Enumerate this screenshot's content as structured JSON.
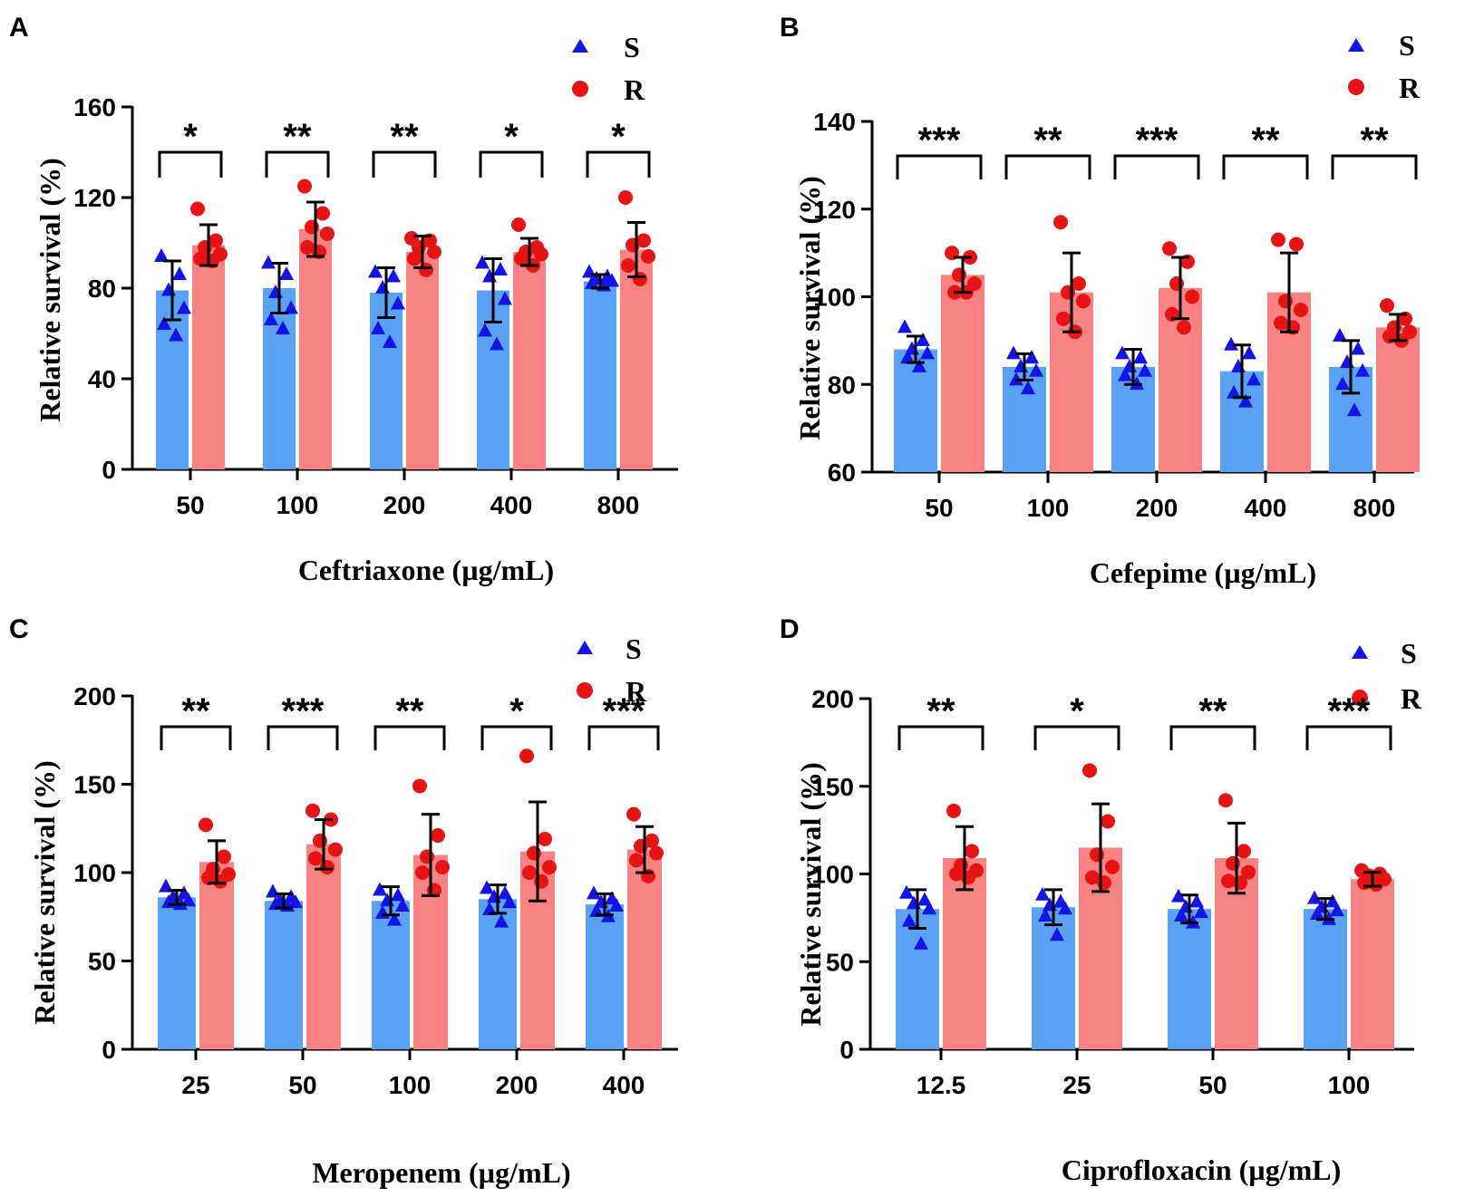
{
  "colors": {
    "s_bar": "#5aa2f5",
    "r_bar": "#f98383",
    "s_marker": "#1414e6",
    "r_marker": "#e61414",
    "axis": "#000000"
  },
  "legend": {
    "s_label": "S",
    "r_label": "R"
  },
  "chart_data": [
    {
      "panel": "A",
      "type": "bar",
      "xlabel": "Ceftriaxone (µg/mL)",
      "ylabel": "Relative survival (%)",
      "ylim": [
        0,
        160
      ],
      "yticks": [
        0,
        40,
        80,
        120,
        160
      ],
      "categories": [
        "50",
        "100",
        "200",
        "400",
        "800"
      ],
      "series": [
        {
          "name": "S",
          "values": [
            79,
            80,
            78,
            79,
            83
          ],
          "sd": [
            13,
            11,
            11,
            14,
            3
          ],
          "points": [
            [
              94,
              86,
              79,
              71,
              64,
              59
            ],
            [
              91,
              86,
              78,
              71,
              66,
              62
            ],
            [
              87,
              85,
              80,
              73,
              62,
              56
            ],
            [
              91,
              88,
              85,
              75,
              61,
              55
            ],
            [
              87,
              85,
              84,
              83,
              82,
              81
            ]
          ]
        },
        {
          "name": "R",
          "values": [
            99,
            106,
            96,
            96,
            97
          ],
          "sd": [
            9,
            12,
            7,
            6,
            12
          ],
          "points": [
            [
              115,
              101,
              98,
              95,
              93,
              92
            ],
            [
              125,
              113,
              107,
              104,
              98,
              96
            ],
            [
              102,
              101,
              98,
              96,
              93,
              88
            ],
            [
              108,
              98,
              96,
              95,
              93,
              90
            ],
            [
              120,
              101,
              99,
              94,
              90,
              84
            ]
          ]
        }
      ],
      "significance": [
        "*",
        "**",
        "**",
        "*",
        "*"
      ]
    },
    {
      "panel": "B",
      "type": "bar",
      "xlabel": "Cefepime (µg/mL)",
      "ylabel": "Relative survival (%)",
      "ylim": [
        60,
        140
      ],
      "yticks": [
        60,
        80,
        100,
        120,
        140
      ],
      "categories": [
        "50",
        "100",
        "200",
        "400",
        "800"
      ],
      "series": [
        {
          "name": "S",
          "values": [
            88,
            84,
            84,
            83,
            84
          ],
          "sd": [
            3,
            3,
            4,
            6,
            6
          ],
          "points": [
            [
              93,
              90,
              88,
              87,
              86,
              84
            ],
            [
              87,
              86,
              84,
              83,
              81,
              79
            ],
            [
              87,
              86,
              84,
              83,
              82,
              80
            ],
            [
              89,
              87,
              84,
              81,
              78,
              76
            ],
            [
              91,
              88,
              85,
              83,
              80,
              74
            ]
          ]
        },
        {
          "name": "R",
          "values": [
            105,
            101,
            102,
            101,
            93
          ],
          "sd": [
            4,
            9,
            7,
            9,
            3
          ],
          "points": [
            [
              110,
              109,
              105,
              103,
              101,
              101
            ],
            [
              117,
              103,
              101,
              99,
              95,
              92
            ],
            [
              111,
              108,
              103,
              100,
              96,
              93
            ],
            [
              113,
              112,
              99,
              97,
              94,
              93
            ],
            [
              98,
              95,
              93,
              92,
              91,
              90
            ]
          ]
        }
      ],
      "significance": [
        "***",
        "**",
        "***",
        "**",
        "**"
      ]
    },
    {
      "panel": "C",
      "type": "bar",
      "xlabel": "Meropenem (µg/mL)",
      "ylabel": "Relative survival (%)",
      "ylim": [
        0,
        200
      ],
      "yticks": [
        0,
        50,
        100,
        150,
        200
      ],
      "categories": [
        "25",
        "50",
        "100",
        "200",
        "400"
      ],
      "series": [
        {
          "name": "S",
          "values": [
            86,
            84,
            84,
            85,
            82
          ],
          "sd": [
            4,
            4,
            8,
            8,
            6
          ],
          "points": [
            [
              92,
              88,
              86,
              84,
              83,
              82
            ],
            [
              89,
              86,
              84,
              83,
              82,
              81
            ],
            [
              90,
              87,
              84,
              81,
              77,
              73
            ],
            [
              91,
              88,
              86,
              83,
              79,
              72
            ],
            [
              88,
              85,
              83,
              81,
              78,
              75
            ]
          ]
        },
        {
          "name": "R",
          "values": [
            106,
            116,
            110,
            112,
            113
          ],
          "sd": [
            12,
            14,
            23,
            28,
            13
          ],
          "points": [
            [
              127,
              109,
              102,
              99,
              97,
              95
            ],
            [
              135,
              130,
              118,
              113,
              108,
              103
            ],
            [
              149,
              121,
              109,
              103,
              100,
              90
            ],
            [
              166,
              119,
              111,
              103,
              100,
              95
            ],
            [
              133,
              118,
              115,
              111,
              107,
              98
            ]
          ]
        }
      ],
      "significance": [
        "**",
        "***",
        "**",
        "*",
        "***"
      ]
    },
    {
      "panel": "D",
      "type": "bar",
      "xlabel": "Ciprofloxacin (µg/mL)",
      "ylabel": "Relative survival (%)",
      "ylim": [
        0,
        200
      ],
      "yticks": [
        0,
        50,
        100,
        150,
        200
      ],
      "categories": [
        "12.5",
        "25",
        "50",
        "100"
      ],
      "series": [
        {
          "name": "S",
          "values": [
            80,
            81,
            80,
            80
          ],
          "sd": [
            11,
            10,
            8,
            6
          ],
          "points": [
            [
              89,
              85,
              83,
              80,
              73,
              60
            ],
            [
              88,
              84,
              82,
              80,
              76,
              65
            ],
            [
              87,
              84,
              81,
              78,
              76,
              72
            ],
            [
              86,
              84,
              81,
              79,
              77,
              74
            ]
          ]
        },
        {
          "name": "R",
          "values": [
            109,
            115,
            109,
            97
          ],
          "sd": [
            18,
            25,
            20,
            4
          ],
          "points": [
            [
              136,
              113,
              105,
              102,
              100,
              98
            ],
            [
              159,
              130,
              111,
              104,
              98,
              95
            ],
            [
              142,
              113,
              106,
              101,
              96,
              95
            ],
            [
              102,
              100,
              99,
              97,
              95,
              94
            ]
          ]
        }
      ],
      "significance": [
        "**",
        "*",
        "**",
        "***"
      ]
    }
  ]
}
